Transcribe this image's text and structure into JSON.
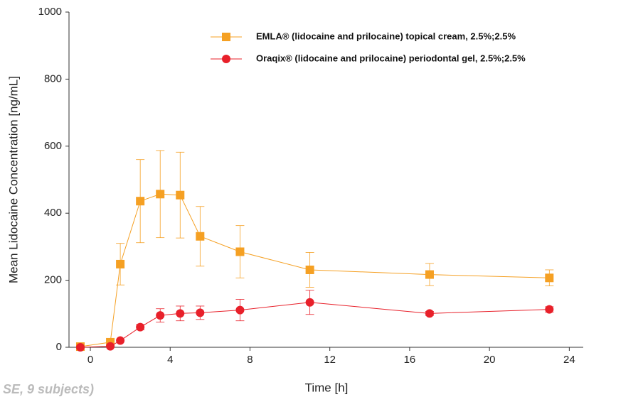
{
  "chart_data": {
    "type": "line",
    "x_label": "Time [h]",
    "y_label": "Mean Lidocaine Concentration [ng/mL]",
    "footnote": "SE, 9 subjects)",
    "xlim": [
      -1.07,
      24.7
    ],
    "xticks": [
      0,
      4,
      8,
      12,
      16,
      20,
      24
    ],
    "ylim": [
      0,
      1000
    ],
    "yticks": [
      0,
      200,
      400,
      600,
      800,
      1000
    ],
    "x": [
      -0.5,
      1.0,
      1.5,
      2.5,
      3.5,
      4.5,
      5.5,
      7.5,
      11,
      17,
      23
    ],
    "series": [
      {
        "name": "EMLA® (lidocaine and prilocaine) topical cream, 2.5%;2.5%",
        "color": "#f5a023",
        "marker": "square",
        "values": [
          2,
          15,
          248,
          436,
          457,
          454,
          331,
          285,
          231,
          217,
          207
        ],
        "errors": [
          0,
          0,
          62,
          124,
          130,
          128,
          89,
          78,
          52,
          33,
          24
        ]
      },
      {
        "name": "Oraqix® (lidocaine and prilocaine) periodontal gel, 2.5%;2.5%",
        "color": "#e8202a",
        "marker": "circle",
        "values": [
          0,
          3,
          20,
          60,
          95,
          101,
          103,
          111,
          134,
          101,
          113
        ],
        "errors": [
          0,
          0,
          0,
          8,
          20,
          22,
          20,
          32,
          36,
          6,
          8
        ]
      }
    ]
  }
}
